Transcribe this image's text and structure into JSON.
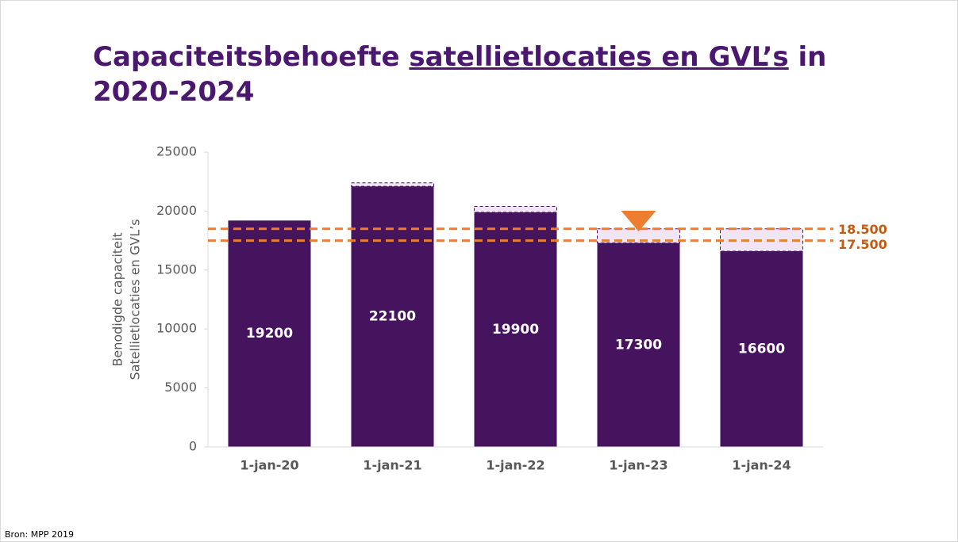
{
  "chart_data": {
    "type": "bar",
    "title_parts": [
      "Capaciteitsbehoefte",
      "satellietlocaties en GVL’s",
      "in",
      "2020-2024"
    ],
    "y_label_lines": [
      "Benodigde capaciteit",
      "Satellietlocaties en GVL’s"
    ],
    "categories": [
      "1-jan-20",
      "1-jan-21",
      "1-jan-22",
      "1-jan-23",
      "1-jan-24"
    ],
    "series": [
      {
        "color": "#46145e",
        "values": [
          19200,
          22100,
          19900,
          17300,
          16600
        ]
      },
      {
        "color": "#f1e4f6",
        "values": [
          0,
          300,
          500,
          1200,
          1900
        ]
      }
    ],
    "ylim": [
      0,
      25000
    ],
    "yticks": [
      0,
      5000,
      10000,
      15000,
      20000,
      25000
    ],
    "reference_lines": [
      {
        "value": 18500,
        "label": "18.500"
      },
      {
        "value": 17500,
        "label": "17.500"
      }
    ],
    "reference_color": "#ed7d31",
    "grid": false,
    "source": "Bron: MPP 2019"
  }
}
